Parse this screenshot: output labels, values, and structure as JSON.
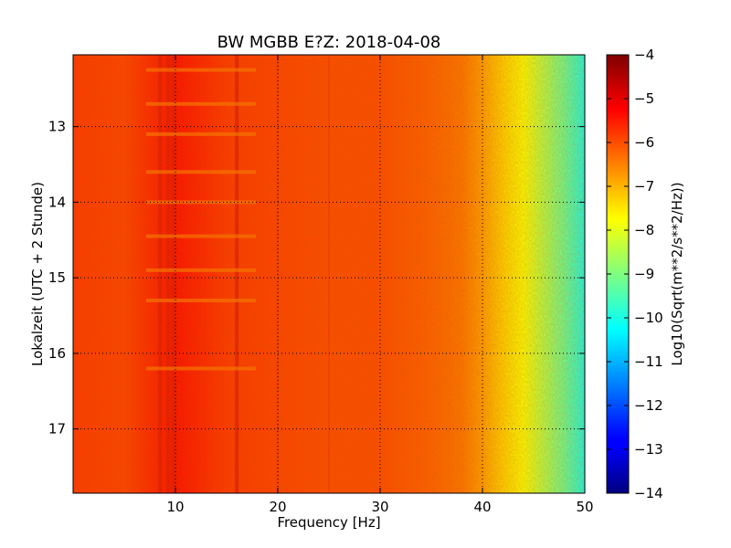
{
  "chart_data": {
    "type": "heatmap",
    "title": "BW MGBB E?Z: 2018-04-08",
    "xlabel": "Frequency [Hz]",
    "ylabel": "Lokalzeit (UTC + 2 Stunde)",
    "xlim": [
      0,
      50
    ],
    "ylim": [
      12.05,
      17.85
    ],
    "x_ticks": [
      10,
      20,
      30,
      40,
      50
    ],
    "y_ticks": [
      13,
      14,
      15,
      16,
      17
    ],
    "y_inverted": true,
    "grid": true,
    "colormap": "jet",
    "colorbar": {
      "label": "Log10(Sqrt(m**2/s**2/Hz))",
      "range": [
        -14,
        -4
      ],
      "ticks": [
        -4,
        -5,
        -6,
        -7,
        -8,
        -9,
        -10,
        -11,
        -12,
        -13,
        -14
      ]
    },
    "spectrum_profile": {
      "frequency_hz": [
        0,
        5,
        10,
        15,
        20,
        25,
        30,
        35,
        38,
        40,
        42,
        44,
        46,
        48,
        50
      ],
      "level": [
        -5.8,
        -5.9,
        -5.4,
        -5.8,
        -5.9,
        -6.0,
        -6.0,
        -6.2,
        -6.4,
        -6.8,
        -7.3,
        -7.8,
        -8.5,
        -9.2,
        -10.0
      ]
    },
    "spectral_lines_hz": [
      8.5,
      9.3,
      9.8,
      16.0,
      20.0,
      25.0
    ],
    "horizontal_bands_hour": [
      12.25,
      12.7,
      13.1,
      13.6,
      14.0,
      14.45,
      14.9,
      15.3,
      16.2
    ]
  }
}
